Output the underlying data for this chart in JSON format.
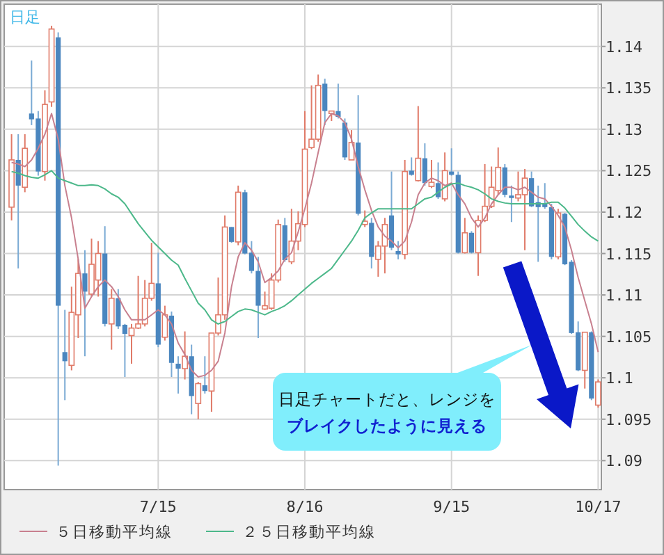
{
  "chart_data": {
    "type": "candlestick",
    "categories": [
      null,
      null,
      null,
      null,
      null,
      null,
      null,
      null,
      null,
      null,
      null,
      null,
      null,
      null,
      null,
      null,
      null,
      null,
      null,
      null,
      null,
      null,
      "7/15",
      null,
      null,
      null,
      null,
      null,
      null,
      null,
      null,
      null,
      null,
      null,
      null,
      null,
      null,
      null,
      null,
      null,
      null,
      null,
      null,
      null,
      "8/16",
      null,
      null,
      null,
      null,
      null,
      null,
      null,
      null,
      null,
      null,
      null,
      null,
      null,
      null,
      null,
      null,
      null,
      null,
      null,
      null,
      null,
      "9/15",
      null,
      null,
      null,
      null,
      null,
      null,
      null,
      null,
      null,
      null,
      null,
      null,
      null,
      null,
      null,
      null,
      null,
      null,
      null,
      null,
      null,
      "10/17"
    ],
    "ohlc": [
      [
        1.1206,
        1.1294,
        1.119,
        1.1263
      ],
      [
        1.1263,
        1.1294,
        1.1132,
        1.1232
      ],
      [
        1.123,
        1.1294,
        1.1224,
        1.1277
      ],
      [
        1.1319,
        1.1383,
        1.1305,
        1.1312
      ],
      [
        1.1313,
        1.1322,
        1.1244,
        1.1249
      ],
      [
        1.1249,
        1.1347,
        1.1238,
        1.133
      ],
      [
        1.1333,
        1.1425,
        1.1327,
        1.1421
      ],
      [
        1.1411,
        1.1417,
        1.0894,
        1.1087
      ],
      [
        1.1031,
        1.1082,
        1.0973,
        1.102
      ],
      [
        1.1015,
        1.111,
        1.1009,
        1.1079
      ],
      [
        1.1076,
        1.1143,
        1.1048,
        1.1126
      ],
      [
        1.1126,
        1.1154,
        1.1026,
        1.1104
      ],
      [
        1.1101,
        1.1168,
        1.1098,
        1.1137
      ],
      [
        1.1118,
        1.1165,
        1.1098,
        1.115
      ],
      [
        1.115,
        1.1183,
        1.1062,
        1.1065
      ],
      [
        1.1065,
        1.1107,
        1.1034,
        1.1096
      ],
      [
        1.1096,
        1.1107,
        1.1059,
        1.1062
      ],
      [
        1.1064,
        1.1065,
        1.1001,
        1.1053
      ],
      [
        1.1051,
        1.1065,
        1.1017,
        1.106
      ],
      [
        1.106,
        1.1123,
        1.1059,
        1.1065
      ],
      [
        1.1065,
        1.1118,
        1.1062,
        1.1096
      ],
      [
        1.1096,
        1.1163,
        1.1093,
        1.1114
      ],
      [
        1.1114,
        1.1151,
        1.1037,
        1.104
      ],
      [
        1.1049,
        1.1087,
        1.1045,
        1.1076
      ],
      [
        1.1075,
        1.108,
        1.1001,
        1.1018
      ],
      [
        1.1017,
        1.1026,
        1.0981,
        1.1011
      ],
      [
        1.1011,
        1.1056,
        1.0998,
        1.1026
      ],
      [
        1.1026,
        1.104,
        1.0956,
        1.0978
      ],
      [
        1.0969,
        1.0995,
        1.095,
        1.0993
      ],
      [
        1.0991,
        1.1026,
        1.0981,
        1.0984
      ],
      [
        1.0984,
        1.1054,
        1.0959,
        1.1054
      ],
      [
        1.1054,
        1.1121,
        1.1051,
        1.1076
      ],
      [
        1.1076,
        1.1196,
        1.107,
        1.1182
      ],
      [
        1.1182,
        1.1182,
        1.1163,
        1.1164
      ],
      [
        1.1164,
        1.1232,
        1.116,
        1.1224
      ],
      [
        1.1224,
        1.1227,
        1.1149,
        1.115
      ],
      [
        1.1151,
        1.1165,
        1.1126,
        1.1129
      ],
      [
        1.1129,
        1.1146,
        1.1048,
        1.1087
      ],
      [
        1.1083,
        1.1104,
        1.1082,
        1.1087
      ],
      [
        1.1084,
        1.1126,
        1.1082,
        1.1118
      ],
      [
        1.1118,
        1.1191,
        1.1115,
        1.1185
      ],
      [
        1.1184,
        1.1193,
        1.114,
        1.1142
      ],
      [
        1.114,
        1.1204,
        1.1137,
        1.1165
      ],
      [
        1.1165,
        1.1201,
        1.1154,
        1.1186
      ],
      [
        1.1185,
        1.1322,
        1.1182,
        1.1276
      ],
      [
        1.1278,
        1.1353,
        1.1276,
        1.1288
      ],
      [
        1.1288,
        1.1366,
        1.1285,
        1.1353
      ],
      [
        1.1355,
        1.1361,
        1.1305,
        1.1322
      ],
      [
        1.1319,
        1.1322,
        1.131,
        1.1322
      ],
      [
        1.1322,
        1.1355,
        1.1313,
        1.1315
      ],
      [
        1.1308,
        1.1313,
        1.1263,
        1.1266
      ],
      [
        1.1263,
        1.1299,
        1.1263,
        1.1284
      ],
      [
        1.1284,
        1.1341,
        1.1196,
        1.1198
      ],
      [
        1.1185,
        1.1202,
        1.1182,
        1.1189
      ],
      [
        1.1187,
        1.1193,
        1.1132,
        1.1146
      ],
      [
        1.1143,
        1.1165,
        1.1122,
        1.1159
      ],
      [
        1.1159,
        1.1193,
        1.1126,
        1.1185
      ],
      [
        1.1196,
        1.1249,
        1.1154,
        1.1157
      ],
      [
        1.1153,
        1.1165,
        1.1143,
        1.1149
      ],
      [
        1.1149,
        1.1263,
        1.1143,
        1.1249
      ],
      [
        1.125,
        1.1266,
        1.1244,
        1.1245
      ],
      [
        1.1238,
        1.1328,
        1.1237,
        1.1265
      ],
      [
        1.1265,
        1.1283,
        1.1232,
        1.1235
      ],
      [
        1.1231,
        1.1263,
        1.1229,
        1.1236
      ],
      [
        1.1235,
        1.126,
        1.1216,
        1.1218
      ],
      [
        1.1216,
        1.1272,
        1.1213,
        1.125
      ],
      [
        1.1249,
        1.1277,
        1.1244,
        1.1245
      ],
      [
        1.1245,
        1.1249,
        1.115,
        1.1151
      ],
      [
        1.1151,
        1.1193,
        1.115,
        1.1175
      ],
      [
        1.1175,
        1.1177,
        1.115,
        1.1151
      ],
      [
        1.1151,
        1.1196,
        1.1123,
        1.119
      ],
      [
        1.119,
        1.1258,
        1.1188,
        1.1207
      ],
      [
        1.1207,
        1.1255,
        1.1205,
        1.123
      ],
      [
        1.1226,
        1.1278,
        1.1221,
        1.1254
      ],
      [
        1.1254,
        1.1258,
        1.1218,
        1.1221
      ],
      [
        1.122,
        1.1232,
        1.1188,
        1.1217
      ],
      [
        1.1217,
        1.1249,
        1.1213,
        1.1221
      ],
      [
        1.1221,
        1.1252,
        1.1154,
        1.1241
      ],
      [
        1.1241,
        1.1249,
        1.1206,
        1.1207
      ],
      [
        1.1212,
        1.1232,
        1.114,
        1.1206
      ],
      [
        1.121,
        1.1235,
        1.1204,
        1.1206
      ],
      [
        1.1206,
        1.121,
        1.1143,
        1.1146
      ],
      [
        1.1146,
        1.1204,
        1.1143,
        1.1199
      ],
      [
        1.1198,
        1.1199,
        1.1136,
        1.1137
      ],
      [
        1.114,
        1.1142,
        1.1053,
        1.1054
      ],
      [
        1.1055,
        1.1068,
        1.1008,
        1.1009
      ],
      [
        1.1009,
        1.1055,
        1.0987,
        1.1055
      ],
      [
        1.1055,
        1.1056,
        1.0973,
        1.0975
      ],
      [
        1.0967,
        1.0998,
        1.0964,
        1.0995
      ]
    ],
    "series": [
      {
        "name": "５日移動平均線",
        "type": "line",
        "color": "#c8808f",
        "values": [
          1.126,
          1.1258,
          1.1255,
          1.1263,
          1.1277,
          1.1294,
          1.1319,
          1.1288,
          1.1232,
          1.1193,
          1.1143,
          1.1084,
          1.1098,
          1.111,
          1.1118,
          1.111,
          1.1098,
          1.1082,
          1.107,
          1.107,
          1.107,
          1.1076,
          1.1082,
          1.1076,
          1.1065,
          1.1042,
          1.1028,
          1.1009,
          1.1001,
          1.1003,
          1.1009,
          1.102,
          1.1054,
          1.111,
          1.1146,
          1.1163,
          1.1154,
          1.114,
          1.1115,
          1.1121,
          1.1129,
          1.1143,
          1.1151,
          1.1176,
          1.1204,
          1.1235,
          1.1272,
          1.1308,
          1.1319,
          1.1316,
          1.1308,
          1.1288,
          1.1255,
          1.1227,
          1.1202,
          1.1182,
          1.1171,
          1.1165,
          1.1157,
          1.1165,
          1.1188,
          1.1221,
          1.1235,
          1.1241,
          1.1238,
          1.1232,
          1.1235,
          1.1221,
          1.121,
          1.1193,
          1.1182,
          1.1193,
          1.121,
          1.1221,
          1.123,
          1.123,
          1.1227,
          1.123,
          1.1224,
          1.1218,
          1.1216,
          1.1207,
          1.1196,
          1.1182,
          1.1154,
          1.1121,
          1.1093,
          1.1065,
          1.1031
        ]
      },
      {
        "name": "２５日移動平均線",
        "type": "line",
        "color": "#4cb88a",
        "values": [
          1.1249,
          1.1247,
          1.1244,
          1.1242,
          1.1241,
          1.1245,
          1.125,
          1.1241,
          1.1238,
          1.1235,
          1.1232,
          1.1232,
          1.1233,
          1.1232,
          1.1228,
          1.1222,
          1.1218,
          1.121,
          1.1198,
          1.1186,
          1.1176,
          1.1166,
          1.1158,
          1.115,
          1.1142,
          1.1136,
          1.112,
          1.1105,
          1.109,
          1.1082,
          1.107,
          1.1065,
          1.1068,
          1.1074,
          1.108,
          1.1083,
          1.1082,
          1.1079,
          1.1076,
          1.108,
          1.1083,
          1.1087,
          1.1093,
          1.11,
          1.1107,
          1.1114,
          1.112,
          1.1126,
          1.1132,
          1.1143,
          1.1154,
          1.1165,
          1.1178,
          1.1193,
          1.1199,
          1.1204,
          1.1204,
          1.1204,
          1.1204,
          1.1204,
          1.1204,
          1.121,
          1.1216,
          1.1218,
          1.1224,
          1.123,
          1.1234,
          1.1235,
          1.1232,
          1.123,
          1.1227,
          1.1222,
          1.1216,
          1.1213,
          1.1211,
          1.121,
          1.121,
          1.121,
          1.121,
          1.121,
          1.121,
          1.1212,
          1.1212,
          1.1205,
          1.1195,
          1.1185,
          1.1177,
          1.117,
          1.1165
        ]
      }
    ],
    "ylim": [
      1.0865,
      1.1451
    ],
    "yticks": [
      1.09,
      1.095,
      1.1,
      1.105,
      1.11,
      1.115,
      1.12,
      1.125,
      1.13,
      1.135,
      1.14
    ],
    "grid": true,
    "legend": "bottom",
    "annotations": [
      "日足",
      "日足チャートだと、レンジを",
      "ブレイクしたように見える"
    ]
  }
}
